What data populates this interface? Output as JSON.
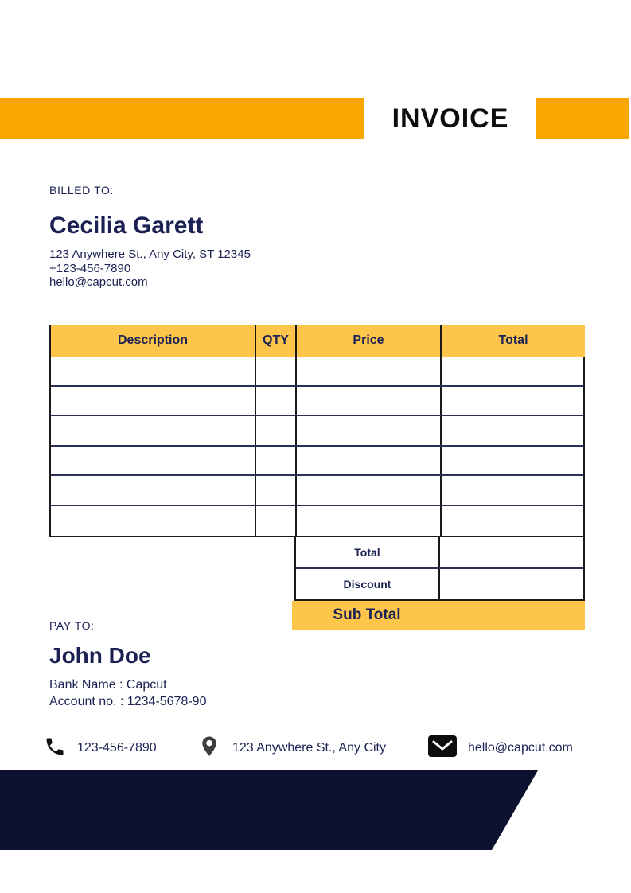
{
  "header": {
    "title": "INVOICE"
  },
  "billed_to": {
    "label": "BILLED TO:",
    "name": "Cecilia Garett",
    "address": "123 Anywhere St., Any City, ST 12345",
    "phone": "+123-456-7890",
    "email": "hello@capcut.com"
  },
  "items_table": {
    "columns": [
      "Description",
      "QTY",
      "Price",
      "Total"
    ],
    "rows": [
      [
        "",
        "",
        "",
        ""
      ],
      [
        "",
        "",
        "",
        ""
      ],
      [
        "",
        "",
        "",
        ""
      ],
      [
        "",
        "",
        "",
        ""
      ],
      [
        "",
        "",
        "",
        ""
      ],
      [
        "",
        "",
        "",
        ""
      ]
    ],
    "summary": {
      "total_label": "Total",
      "total_value": "",
      "discount_label": "Discount",
      "discount_value": "",
      "subtotal_label": "Sub Total"
    }
  },
  "pay_to": {
    "label": "PAY TO:",
    "name": "John Doe",
    "bank_name": "Bank Name : Capcut",
    "account_no": "Account no. : 1234-5678-90"
  },
  "footer": {
    "phone": "123-456-7890",
    "address": "123 Anywhere St., Any City",
    "email": "hello@capcut.com"
  },
  "icons": {
    "phone": "phone-icon",
    "location": "location-pin-icon",
    "email": "envelope-icon"
  },
  "colors": {
    "accent_orange": "#F9A602",
    "accent_gold": "#FDC64B",
    "text_navy": "#1B2153",
    "table_row_line": "#2B3156",
    "band_dark_navy": "#0C1130"
  }
}
